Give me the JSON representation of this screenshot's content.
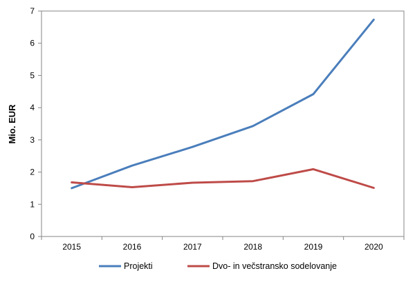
{
  "chart_data": {
    "type": "line",
    "title": "",
    "xlabel": "",
    "ylabel": "Mio. EUR",
    "categories": [
      "2015",
      "2016",
      "2017",
      "2018",
      "2019",
      "2020"
    ],
    "ylim": [
      0,
      7
    ],
    "yticks": [
      0,
      1,
      2,
      3,
      4,
      5,
      6,
      7
    ],
    "grid": false,
    "legend_position": "bottom",
    "series": [
      {
        "name": "Projekti",
        "color": "#4a7ebb",
        "values": [
          1.5,
          2.2,
          2.78,
          3.43,
          4.42,
          6.73
        ]
      },
      {
        "name": "Dvo- in večstransko sodelovanje",
        "color": "#be4b48",
        "values": [
          1.68,
          1.53,
          1.67,
          1.72,
          2.09,
          1.51
        ]
      }
    ]
  }
}
